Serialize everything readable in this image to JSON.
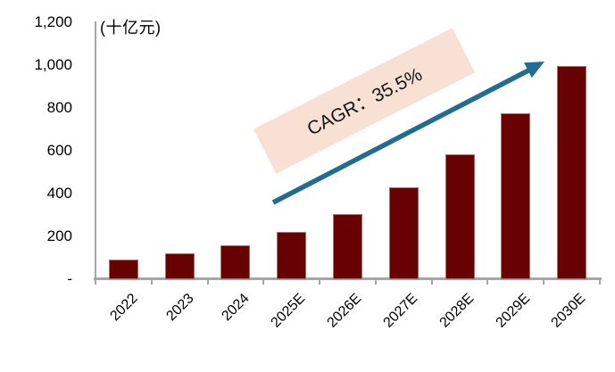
{
  "chart_data": {
    "type": "bar",
    "title": "",
    "unit_label": "(十亿元)",
    "categories": [
      "2022",
      "2023",
      "2024",
      "2025E",
      "2026E",
      "2027E",
      "2028E",
      "2029E",
      "2030E"
    ],
    "values": [
      90,
      120,
      160,
      220,
      305,
      430,
      585,
      775,
      995
    ],
    "xlabel": "",
    "ylabel": "",
    "ylim": [
      0,
      1200
    ],
    "yticks": [
      0,
      200,
      400,
      600,
      800,
      1000,
      1200
    ],
    "ytick_labels": [
      "-",
      "200",
      "400",
      "600",
      "800",
      "1,000",
      "1,200"
    ],
    "grid": false,
    "legend": "none",
    "x_label_rotation_deg": -45,
    "annotation": {
      "type": "arrow-with-banner",
      "label": "CAGR：35.5%"
    },
    "colors": {
      "bar": "#680202",
      "arrow": "#226C90",
      "banner": "#F8E1D4",
      "axis": "#A6A6A6",
      "text": "#000000"
    }
  }
}
